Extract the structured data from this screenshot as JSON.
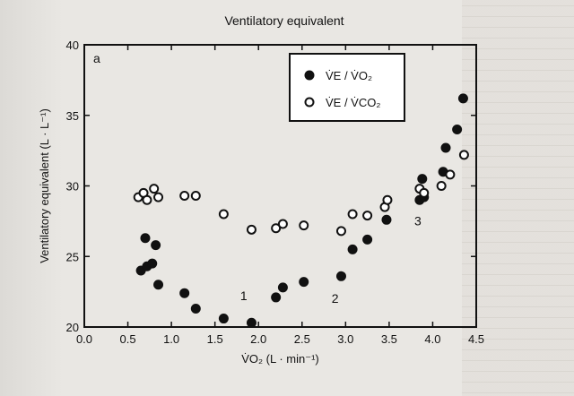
{
  "chart_data": {
    "type": "scatter",
    "title": "Ventilatory equivalent",
    "panel_label": "a",
    "xlabel": "V̇O₂ (L · min⁻¹)",
    "ylabel": "Ventilatory equivalent (L · L⁻¹)",
    "xlim": [
      0.0,
      4.5
    ],
    "ylim": [
      20,
      40
    ],
    "xticks": [
      "0.0",
      "0.5",
      "1.0",
      "1.5",
      "2.0",
      "2.5",
      "3.0",
      "3.5",
      "4.0",
      "4.5"
    ],
    "yticks": [
      "20",
      "25",
      "30",
      "35",
      "40"
    ],
    "legend_position": "top-right",
    "series": [
      {
        "name": "V̇E / V̇O₂",
        "marker": "filled-circle",
        "points": [
          [
            0.65,
            24.0
          ],
          [
            0.7,
            26.3
          ],
          [
            0.72,
            24.3
          ],
          [
            0.78,
            24.5
          ],
          [
            0.82,
            25.8
          ],
          [
            0.85,
            23.0
          ],
          [
            1.15,
            22.4
          ],
          [
            1.28,
            21.3
          ],
          [
            1.6,
            20.6
          ],
          [
            1.92,
            20.3
          ],
          [
            2.2,
            22.1
          ],
          [
            2.28,
            22.8
          ],
          [
            2.52,
            23.2
          ],
          [
            2.95,
            23.6
          ],
          [
            3.08,
            25.5
          ],
          [
            3.25,
            26.2
          ],
          [
            3.47,
            27.6
          ],
          [
            3.85,
            29.0
          ],
          [
            3.88,
            30.5
          ],
          [
            3.9,
            29.2
          ],
          [
            4.12,
            31.0
          ],
          [
            4.15,
            32.7
          ],
          [
            4.28,
            34.0
          ],
          [
            4.35,
            36.2
          ]
        ]
      },
      {
        "name": "V̇E / V̇CO₂",
        "marker": "open-circle",
        "points": [
          [
            0.62,
            29.2
          ],
          [
            0.68,
            29.5
          ],
          [
            0.72,
            29.0
          ],
          [
            0.8,
            29.8
          ],
          [
            0.85,
            29.2
          ],
          [
            1.15,
            29.3
          ],
          [
            1.28,
            29.3
          ],
          [
            1.6,
            28.0
          ],
          [
            1.92,
            26.9
          ],
          [
            2.2,
            27.0
          ],
          [
            2.28,
            27.3
          ],
          [
            2.52,
            27.2
          ],
          [
            2.95,
            26.8
          ],
          [
            3.08,
            28.0
          ],
          [
            3.25,
            27.9
          ],
          [
            3.45,
            28.5
          ],
          [
            3.48,
            29.0
          ],
          [
            3.85,
            29.8
          ],
          [
            3.9,
            29.5
          ],
          [
            4.1,
            30.0
          ],
          [
            4.2,
            30.8
          ],
          [
            4.36,
            32.2
          ]
        ]
      }
    ],
    "annotations": [
      {
        "text": "1",
        "x": 1.83,
        "y": 21.9
      },
      {
        "text": "2",
        "x": 2.88,
        "y": 21.7
      },
      {
        "text": "3",
        "x": 3.83,
        "y": 27.2
      }
    ]
  },
  "colors": {
    "marker": "#111111",
    "open_fill": "#ffffff",
    "axis": "#111111",
    "background": "#e9e7e3"
  }
}
